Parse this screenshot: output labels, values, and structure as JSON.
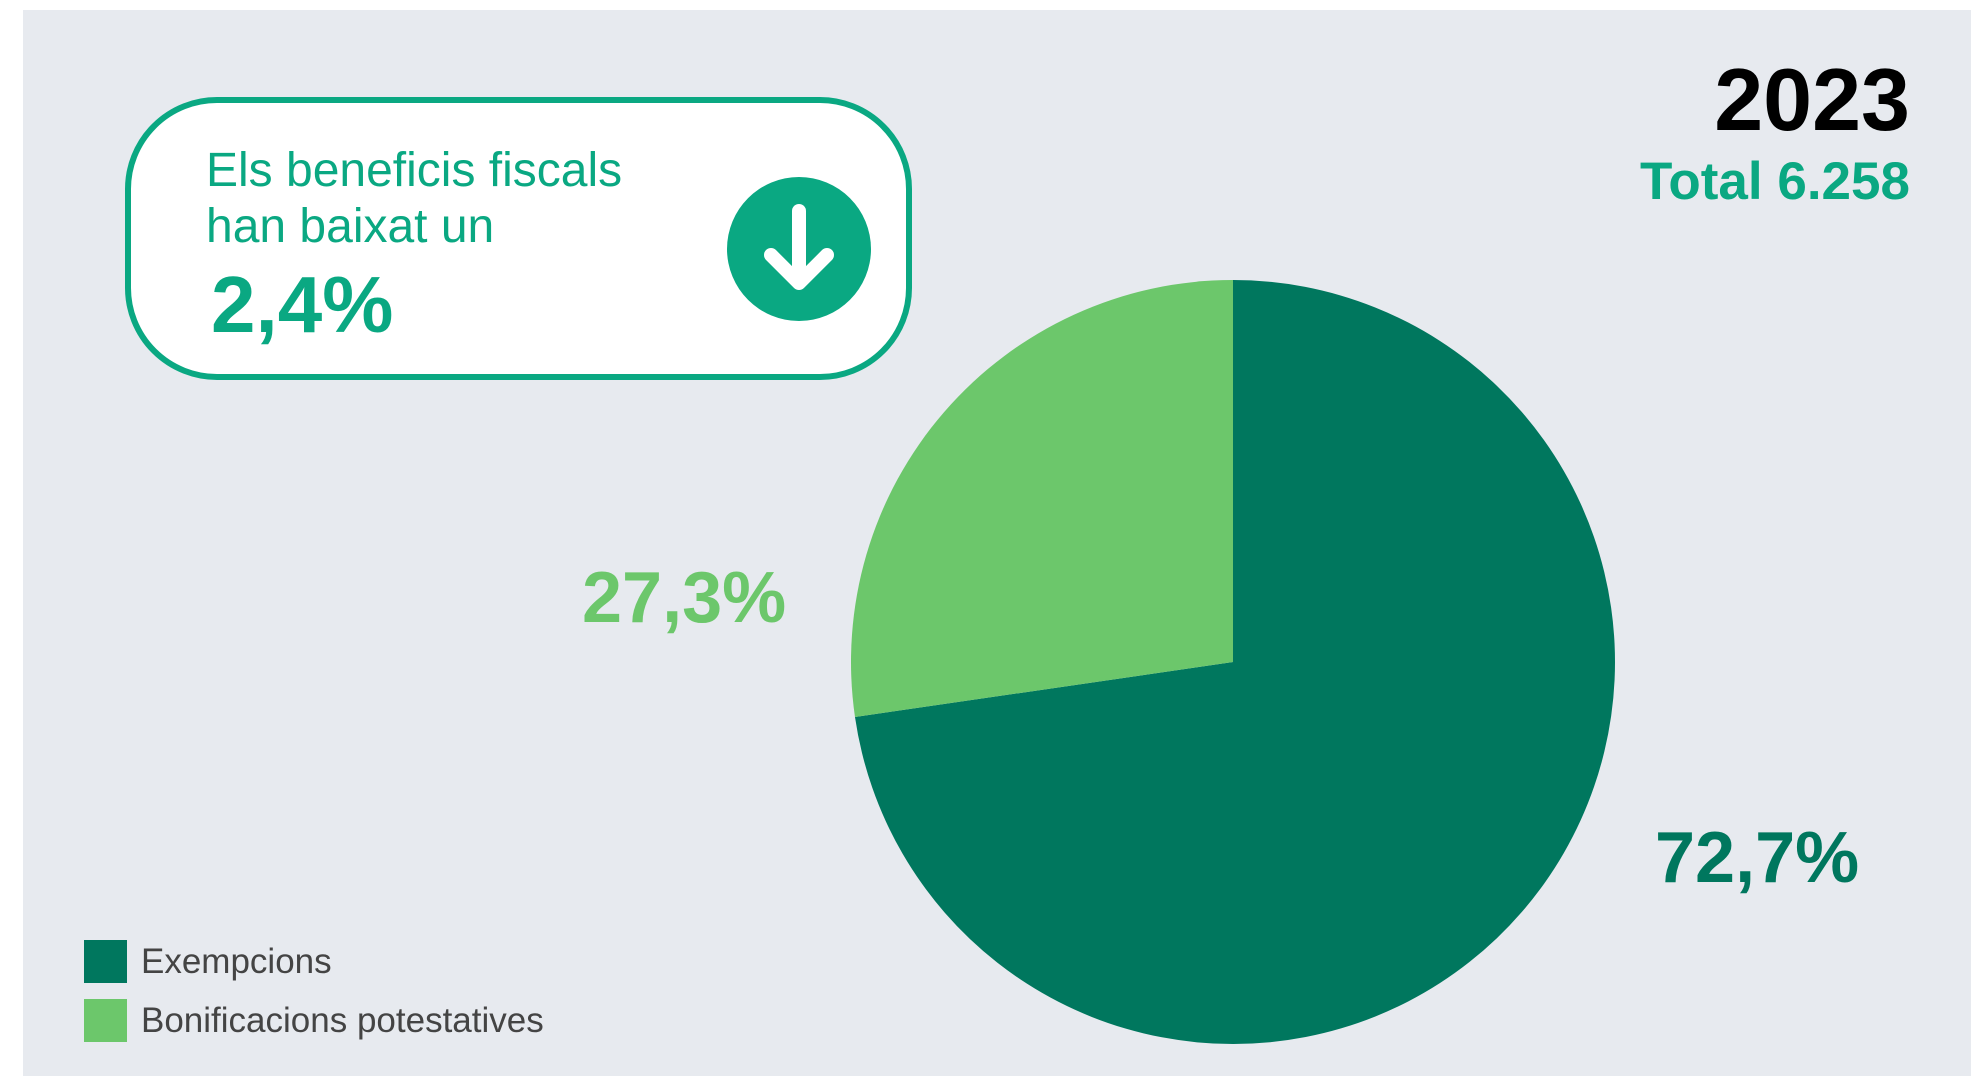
{
  "header": {
    "year": "2023",
    "total": "Total 6.258"
  },
  "callout": {
    "text": "Els beneficis fiscals han baixat un",
    "value": "2,4%",
    "icon": "arrow-down-circle-icon"
  },
  "colors": {
    "accent": "#0aa882",
    "exempcions": "#00775e",
    "bonificacions": "#6cc76b",
    "background": "#e7eaef"
  },
  "chart_data": {
    "type": "pie",
    "title": "",
    "slices": [
      {
        "name": "Exempcions",
        "value": 72.7,
        "label": "72,7%",
        "color": "#00775e"
      },
      {
        "name": "Bonificacions potestatives",
        "value": 27.3,
        "label": "27,3%",
        "color": "#6cc76b"
      }
    ],
    "start_angle": "12 o'clock",
    "direction": "clockwise",
    "legend": "bottom-left"
  },
  "legend": {
    "items": [
      {
        "label": "Exempcions",
        "color": "#00775e"
      },
      {
        "label": "Bonificacions potestatives",
        "color": "#6cc76b"
      }
    ]
  }
}
